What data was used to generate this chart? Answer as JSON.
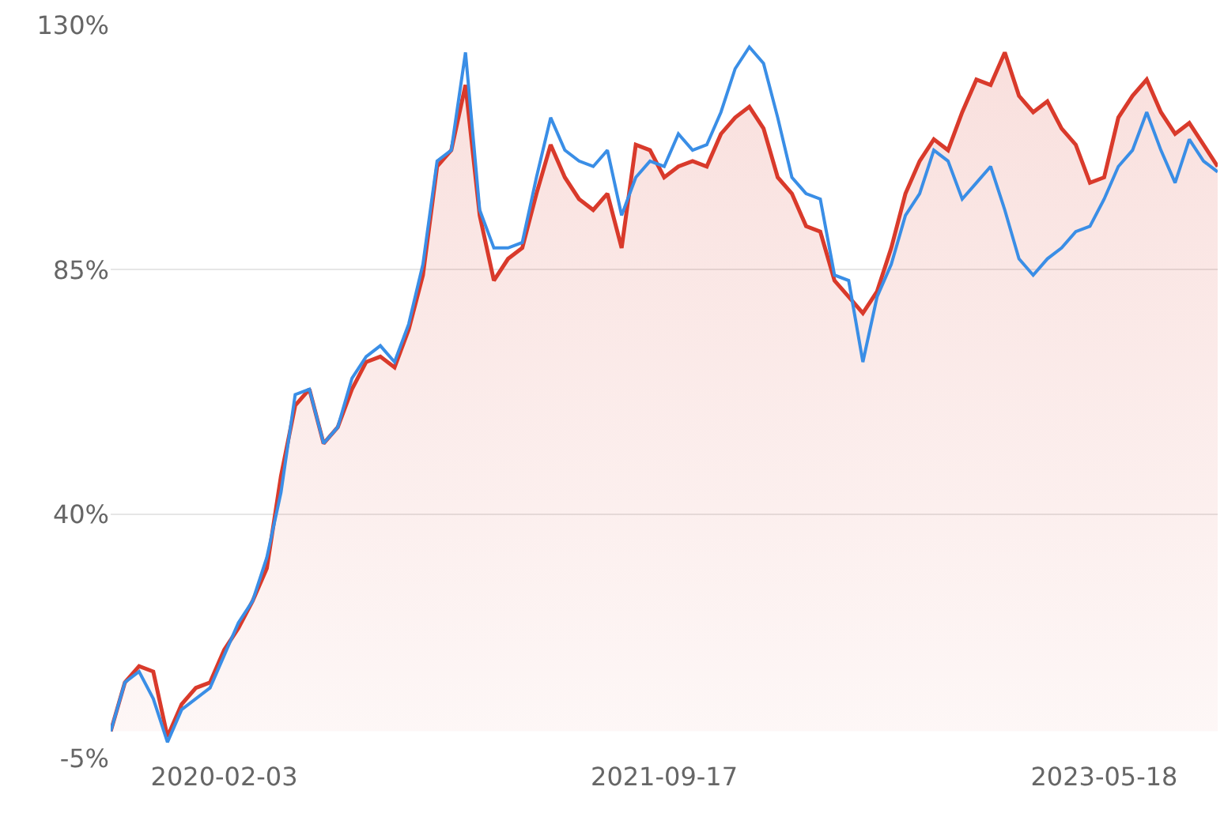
{
  "chart_data": {
    "type": "line",
    "categories": [
      null,
      null,
      null,
      null,
      null,
      null,
      null,
      null,
      "2020-02-03",
      null,
      null,
      null,
      null,
      null,
      null,
      null,
      null,
      null,
      null,
      null,
      null,
      null,
      null,
      null,
      null,
      null,
      null,
      null,
      null,
      null,
      null,
      null,
      null,
      null,
      null,
      null,
      null,
      null,
      null,
      "2021-09-17",
      null,
      null,
      null,
      null,
      null,
      null,
      null,
      null,
      null,
      null,
      null,
      null,
      null,
      null,
      null,
      null,
      null,
      null,
      null,
      null,
      null,
      null,
      null,
      null,
      null,
      null,
      null,
      null,
      null,
      null,
      "2023-05-18",
      null,
      null,
      null,
      null,
      null,
      null,
      null,
      null
    ],
    "series": [
      {
        "type": "area",
        "color": "#d93a2b",
        "values": [
          0,
          9,
          12,
          11,
          -1,
          5,
          8,
          9,
          15,
          19,
          24,
          30,
          47,
          60,
          63,
          53,
          56,
          63,
          68,
          69,
          67,
          74,
          84,
          104,
          107,
          119,
          95,
          83,
          87,
          89,
          99,
          108,
          102,
          98,
          96,
          99,
          89,
          108,
          107,
          102,
          104,
          105,
          104,
          110,
          113,
          115,
          111,
          102,
          99,
          93,
          92,
          83,
          80,
          77,
          81,
          89,
          99,
          105,
          109,
          107,
          114,
          120,
          119,
          125,
          117,
          114,
          116,
          111,
          108,
          101,
          102,
          113,
          117,
          120,
          114,
          110,
          112,
          108,
          104
        ]
      },
      {
        "color": "#3a8ee6",
        "values": [
          0,
          9,
          11,
          6,
          -2,
          4,
          6,
          8,
          14,
          20,
          24,
          32,
          44,
          62,
          63,
          53,
          56,
          65,
          69,
          71,
          68,
          75,
          86,
          105,
          107,
          125,
          96,
          89,
          89,
          90,
          102,
          113,
          107,
          105,
          104,
          107,
          95,
          102,
          105,
          104,
          110,
          107,
          108,
          114,
          122,
          126,
          123,
          113,
          102,
          99,
          98,
          84,
          83,
          68,
          80,
          86,
          95,
          99,
          107,
          105,
          98,
          101,
          104,
          96,
          87,
          84,
          87,
          89,
          92,
          93,
          98,
          104,
          107,
          114,
          107,
          101,
          109,
          105,
          103
        ]
      }
    ],
    "ylim": [
      -5,
      130
    ],
    "yticks": [
      {
        "value": -5,
        "label": "-5%"
      },
      {
        "value": 40,
        "label": "40%"
      },
      {
        "value": 85,
        "label": "85%"
      },
      {
        "value": 130,
        "label": "130%"
      }
    ],
    "grid": "y",
    "marker": "none",
    "line_style": "solid"
  }
}
